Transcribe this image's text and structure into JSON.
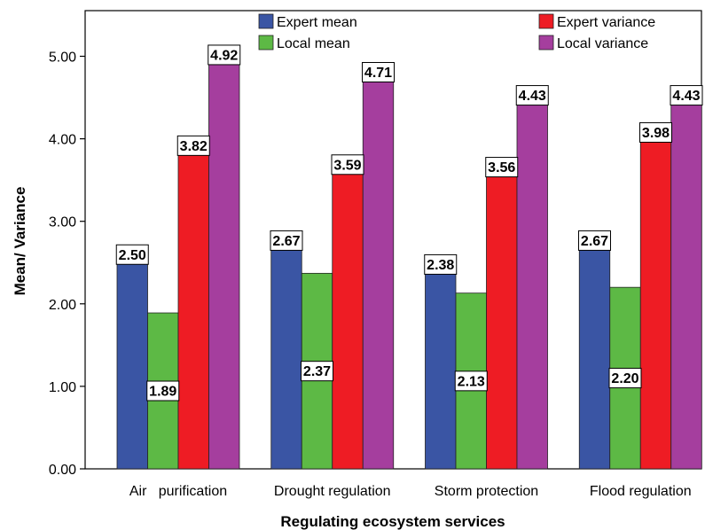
{
  "chart_data": {
    "type": "bar",
    "xlabel": "Regulating ecosystem services",
    "ylabel": "Mean/ Variance",
    "ylim": [
      0,
      5.5
    ],
    "yticks": [
      "0.00",
      "1.00",
      "2.00",
      "3.00",
      "4.00",
      "5.00"
    ],
    "grid": false,
    "legend_position": "top",
    "categories": [
      "Air   purification",
      "Drought regulation",
      "Storm protection",
      "Flood regulation"
    ],
    "series": [
      {
        "name": "Expert mean",
        "color": "#3a55a4",
        "values": [
          2.5,
          2.67,
          2.38,
          2.67
        ],
        "labels": [
          "2.50",
          "2.67",
          "2.38",
          "2.67"
        ]
      },
      {
        "name": "Local mean",
        "color": "#5db945",
        "values": [
          1.89,
          2.37,
          2.13,
          2.2
        ],
        "labels": [
          "1.89",
          "2.37",
          "2.13",
          "2.20"
        ]
      },
      {
        "name": "Expert variance",
        "color": "#ee1c24",
        "values": [
          3.82,
          3.59,
          3.56,
          3.98
        ],
        "labels": [
          "3.82",
          "3.59",
          "3.56",
          "3.98"
        ]
      },
      {
        "name": "Local variance",
        "color": "#a53e9e",
        "values": [
          4.92,
          4.71,
          4.43,
          4.43
        ],
        "labels": [
          "4.92",
          "4.71",
          "4.43",
          "4.43"
        ]
      }
    ]
  }
}
